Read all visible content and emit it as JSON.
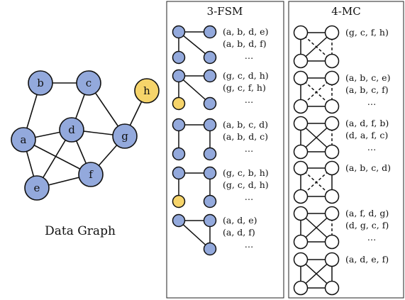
{
  "colors": {
    "node_blue": "#93a9dc",
    "node_yellow": "#f6d46a",
    "node_white": "#ffffff",
    "stroke": "#111111"
  },
  "data_graph": {
    "label": "Data Graph",
    "nodes": [
      {
        "id": "a",
        "label": "a",
        "color": "blue"
      },
      {
        "id": "b",
        "label": "b",
        "color": "blue"
      },
      {
        "id": "c",
        "label": "c",
        "color": "blue"
      },
      {
        "id": "d",
        "label": "d",
        "color": "blue"
      },
      {
        "id": "e",
        "label": "e",
        "color": "blue"
      },
      {
        "id": "f",
        "label": "f",
        "color": "blue"
      },
      {
        "id": "g",
        "label": "g",
        "color": "blue"
      },
      {
        "id": "h",
        "label": "h",
        "color": "yellow"
      }
    ],
    "edges": [
      [
        "b",
        "c"
      ],
      [
        "b",
        "a"
      ],
      [
        "c",
        "d"
      ],
      [
        "c",
        "g"
      ],
      [
        "a",
        "d"
      ],
      [
        "a",
        "e"
      ],
      [
        "a",
        "f"
      ],
      [
        "d",
        "e"
      ],
      [
        "d",
        "f"
      ],
      [
        "d",
        "g"
      ],
      [
        "e",
        "f"
      ],
      [
        "f",
        "g"
      ],
      [
        "g",
        "h"
      ]
    ]
  },
  "fsm": {
    "title": "3-FSM",
    "patterns": [
      {
        "shape": "star",
        "embeddings": [
          "(a, b, d, e)",
          "(a, b, d, f)",
          "…"
        ]
      },
      {
        "shape": "branch-yellow",
        "embeddings": [
          "(g, c, d, h)",
          "(g, c, f,  h)",
          "…"
        ]
      },
      {
        "shape": "two-paths",
        "embeddings": [
          "(a, b, c, d)",
          "(a, b, d, c)",
          "…"
        ]
      },
      {
        "shape": "two-paths-yellow",
        "embeddings": [
          "(g, c, b, h)",
          "(g, c, d, h)",
          "…"
        ]
      },
      {
        "shape": "triangle",
        "embeddings": [
          "(a, d, e)",
          "(a, d, f)",
          "…"
        ]
      }
    ]
  },
  "mc": {
    "title": "4-MC",
    "patterns": [
      {
        "shape": "mc1",
        "embeddings": [
          "(g, c, f, h)"
        ]
      },
      {
        "shape": "mc2",
        "embeddings": [
          "(a, b, c, e)",
          "(a, b, c, f)",
          "…"
        ]
      },
      {
        "shape": "mc3",
        "embeddings": [
          "(a, d, f, b)",
          "(d, a, f, c)",
          "…"
        ]
      },
      {
        "shape": "mc4",
        "embeddings": [
          "(a, b, c, d)"
        ]
      },
      {
        "shape": "mc5",
        "embeddings": [
          "(a, f, d, g)",
          "(d, g, c, f)",
          "…"
        ]
      },
      {
        "shape": "mc6",
        "embeddings": [
          "(a, d, e, f)"
        ]
      }
    ]
  }
}
